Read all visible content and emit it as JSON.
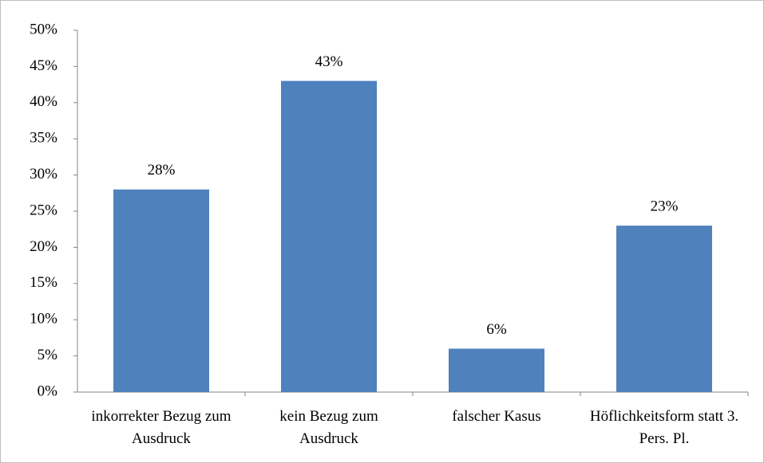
{
  "chart_data": {
    "type": "bar",
    "categories": [
      "inkorrekter Bezug zum Ausdruck",
      "kein Bezug zum Ausdruck",
      "falscher Kasus",
      "Höflichkeitsform statt 3. Pers. Pl."
    ],
    "values": [
      28,
      43,
      6,
      23
    ],
    "value_labels": [
      "28%",
      "43%",
      "6%",
      "23%"
    ],
    "color": "#4f81bd",
    "ylim": [
      0,
      50
    ],
    "yticks": [
      {
        "value": 0,
        "label": "0%"
      },
      {
        "value": 5,
        "label": "5%"
      },
      {
        "value": 10,
        "label": "10%"
      },
      {
        "value": 15,
        "label": "15%"
      },
      {
        "value": 20,
        "label": "20%"
      },
      {
        "value": 25,
        "label": "25%"
      },
      {
        "value": 30,
        "label": "30%"
      },
      {
        "value": 35,
        "label": "35%"
      },
      {
        "value": 40,
        "label": "40%"
      },
      {
        "value": 45,
        "label": "45%"
      },
      {
        "value": 50,
        "label": "50%"
      }
    ],
    "grid": false
  }
}
